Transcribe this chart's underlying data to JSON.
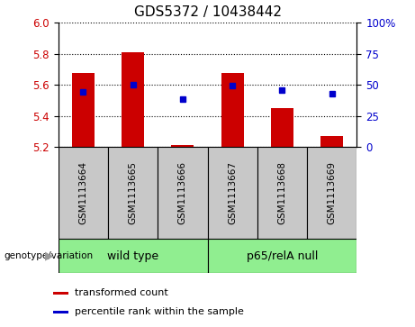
{
  "title": "GDS5372 / 10438442",
  "samples": [
    "GSM1113664",
    "GSM1113665",
    "GSM1113666",
    "GSM1113667",
    "GSM1113668",
    "GSM1113669"
  ],
  "bar_values": [
    5.675,
    5.81,
    5.215,
    5.675,
    5.45,
    5.27
  ],
  "percentile_values": [
    5.555,
    5.6,
    5.51,
    5.595,
    5.565,
    5.545
  ],
  "bar_baseline": 5.2,
  "ylim_left": [
    5.2,
    6.0
  ],
  "ylim_right": [
    0,
    100
  ],
  "yticks_left": [
    5.2,
    5.4,
    5.6,
    5.8,
    6.0
  ],
  "yticks_right": [
    0,
    25,
    50,
    75,
    100
  ],
  "ytick_labels_right": [
    "0",
    "25",
    "50",
    "75",
    "100%"
  ],
  "groups": [
    {
      "label": "wild type",
      "indices": [
        0,
        1,
        2
      ]
    },
    {
      "label": "p65/relA null",
      "indices": [
        3,
        4,
        5
      ]
    }
  ],
  "group_color": "#90EE90",
  "bar_color": "#CC0000",
  "dot_color": "#0000CC",
  "sample_box_color": "#C8C8C8",
  "legend_items": [
    {
      "color": "#CC0000",
      "label": "transformed count"
    },
    {
      "color": "#0000CC",
      "label": "percentile rank within the sample"
    }
  ],
  "genotype_label": "genotype/variation",
  "title_fontsize": 11,
  "tick_fontsize": 8.5,
  "label_fontsize": 8.5
}
